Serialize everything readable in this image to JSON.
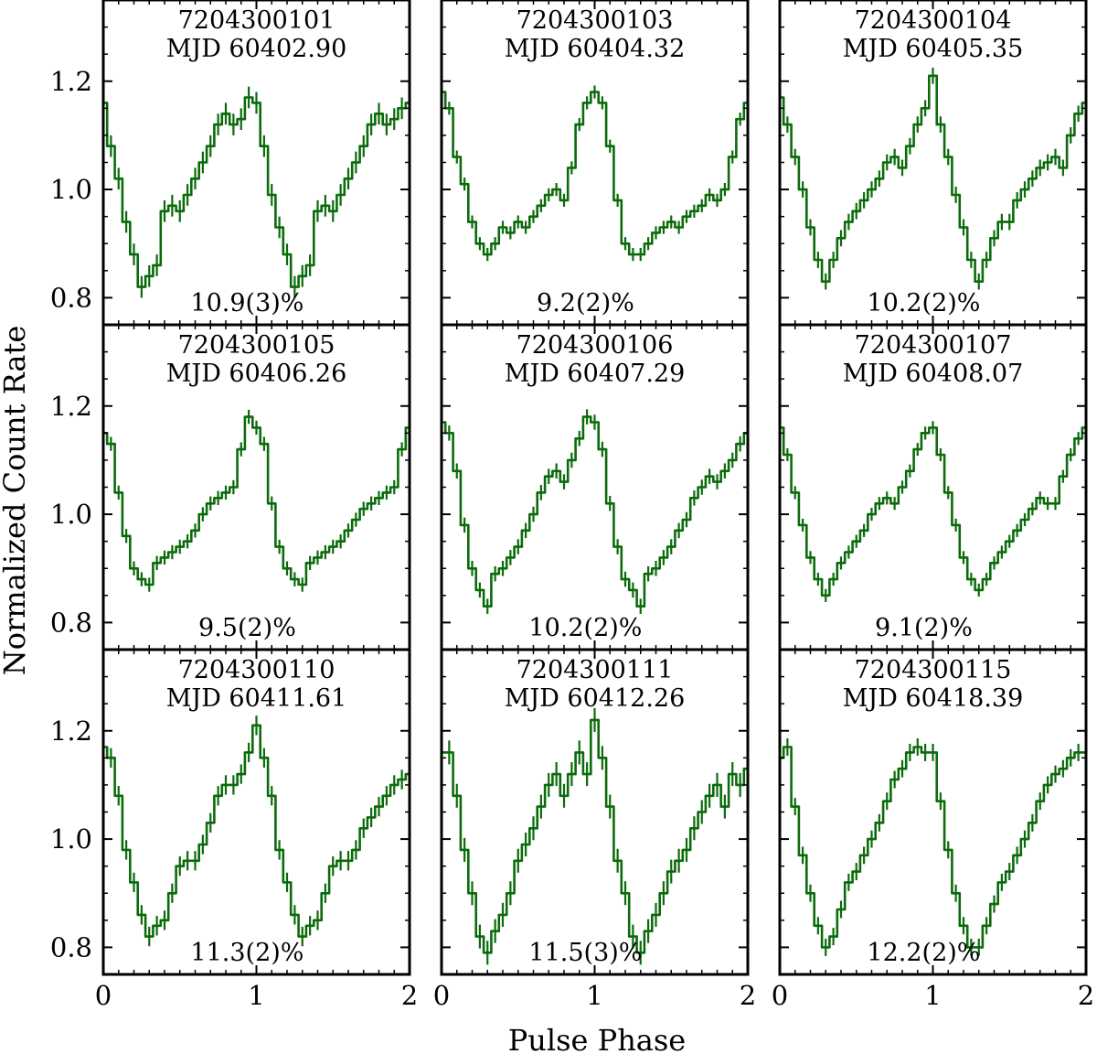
{
  "chart_data": {
    "type": "line",
    "xlabel": "Pulse Phase",
    "ylabel": "Normalized Count Rate",
    "xlim": [
      0,
      2
    ],
    "ylim": [
      0.75,
      1.35
    ],
    "xticks": [
      0,
      1,
      2
    ],
    "xtick_labels": [
      "0",
      "1",
      "2"
    ],
    "yticks": [
      0.8,
      1.0,
      1.2
    ],
    "ytick_labels": [
      "0.8",
      "1.0",
      "1.2"
    ],
    "line_color": "#0b6b0b",
    "grid": false,
    "layout": "3x3 grid, shared axes",
    "panels": [
      {
        "obsid": "7204300101",
        "mjd": "MJD 60402.90",
        "pulsed_fraction": "10.9(3)%",
        "x": [
          0.0,
          0.05,
          0.1,
          0.15,
          0.2,
          0.25,
          0.3,
          0.35,
          0.4,
          0.45,
          0.5,
          0.55,
          0.6,
          0.65,
          0.7,
          0.75,
          0.8,
          0.85,
          0.9,
          0.95,
          1.0,
          1.05,
          1.1,
          1.15,
          1.2,
          1.25,
          1.3,
          1.35,
          1.4,
          1.45,
          1.5,
          1.55,
          1.6,
          1.65,
          1.7,
          1.75,
          1.8,
          1.85,
          1.9,
          1.95,
          2.0
        ],
        "y": [
          1.16,
          1.08,
          1.02,
          0.94,
          0.88,
          0.82,
          0.84,
          0.86,
          0.96,
          0.97,
          0.96,
          0.99,
          1.02,
          1.05,
          1.08,
          1.12,
          1.14,
          1.12,
          1.13,
          1.17,
          1.16,
          1.08,
          0.99,
          0.93,
          0.88,
          0.82,
          0.84,
          0.86,
          0.96,
          0.97,
          0.96,
          0.99,
          1.02,
          1.05,
          1.08,
          1.12,
          1.14,
          1.12,
          1.13,
          1.15,
          1.16
        ],
        "yerr": 0.02
      },
      {
        "obsid": "7204300103",
        "mjd": "MJD 60404.32",
        "pulsed_fraction": "9.2(2)%",
        "x": [
          0.0,
          0.05,
          0.1,
          0.15,
          0.2,
          0.25,
          0.3,
          0.35,
          0.4,
          0.45,
          0.5,
          0.55,
          0.6,
          0.65,
          0.7,
          0.75,
          0.8,
          0.85,
          0.9,
          0.95,
          1.0,
          1.05,
          1.1,
          1.15,
          1.2,
          1.25,
          1.3,
          1.35,
          1.4,
          1.45,
          1.5,
          1.55,
          1.6,
          1.65,
          1.7,
          1.75,
          1.8,
          1.85,
          1.9,
          1.95,
          2.0
        ],
        "y": [
          1.18,
          1.15,
          1.06,
          1.01,
          0.94,
          0.9,
          0.88,
          0.9,
          0.93,
          0.92,
          0.94,
          0.93,
          0.95,
          0.97,
          0.99,
          1.0,
          0.98,
          1.04,
          1.12,
          1.16,
          1.18,
          1.16,
          1.08,
          0.98,
          0.9,
          0.88,
          0.88,
          0.9,
          0.92,
          0.93,
          0.94,
          0.93,
          0.95,
          0.96,
          0.97,
          0.99,
          0.98,
          1.0,
          1.06,
          1.13,
          1.16
        ],
        "yerr": 0.012
      },
      {
        "obsid": "7204300104",
        "mjd": "MJD 60405.35",
        "pulsed_fraction": "10.2(2)%",
        "x": [
          0.0,
          0.05,
          0.1,
          0.15,
          0.2,
          0.25,
          0.3,
          0.35,
          0.4,
          0.45,
          0.5,
          0.55,
          0.6,
          0.65,
          0.7,
          0.75,
          0.8,
          0.85,
          0.9,
          0.95,
          1.0,
          1.05,
          1.1,
          1.15,
          1.2,
          1.25,
          1.3,
          1.35,
          1.4,
          1.45,
          1.5,
          1.55,
          1.6,
          1.65,
          1.7,
          1.75,
          1.8,
          1.85,
          1.9,
          1.95,
          2.0
        ],
        "y": [
          1.17,
          1.12,
          1.06,
          1.0,
          0.93,
          0.87,
          0.83,
          0.87,
          0.91,
          0.94,
          0.96,
          0.98,
          1.0,
          1.02,
          1.05,
          1.06,
          1.04,
          1.08,
          1.12,
          1.15,
          1.21,
          1.12,
          1.06,
          0.99,
          0.93,
          0.87,
          0.83,
          0.87,
          0.91,
          0.94,
          0.94,
          0.98,
          1.0,
          1.02,
          1.04,
          1.05,
          1.06,
          1.04,
          1.1,
          1.14,
          1.16
        ],
        "yerr": 0.015
      },
      {
        "obsid": "7204300105",
        "mjd": "MJD 60406.26",
        "pulsed_fraction": "9.5(2)%",
        "x": [
          0.0,
          0.05,
          0.1,
          0.15,
          0.2,
          0.25,
          0.3,
          0.35,
          0.4,
          0.45,
          0.5,
          0.55,
          0.6,
          0.65,
          0.7,
          0.75,
          0.8,
          0.85,
          0.9,
          0.95,
          1.0,
          1.05,
          1.1,
          1.15,
          1.2,
          1.25,
          1.3,
          1.35,
          1.4,
          1.45,
          1.5,
          1.55,
          1.6,
          1.65,
          1.7,
          1.75,
          1.8,
          1.85,
          1.9,
          1.95,
          2.0
        ],
        "y": [
          1.15,
          1.13,
          1.04,
          0.96,
          0.9,
          0.88,
          0.87,
          0.91,
          0.92,
          0.93,
          0.94,
          0.95,
          0.97,
          1.0,
          1.02,
          1.03,
          1.04,
          1.05,
          1.12,
          1.18,
          1.16,
          1.13,
          1.02,
          0.94,
          0.9,
          0.88,
          0.87,
          0.91,
          0.92,
          0.93,
          0.94,
          0.95,
          0.97,
          0.99,
          1.01,
          1.02,
          1.03,
          1.04,
          1.05,
          1.12,
          1.16
        ],
        "yerr": 0.013
      },
      {
        "obsid": "7204300106",
        "mjd": "MJD 60407.29",
        "pulsed_fraction": "10.2(2)%",
        "x": [
          0.0,
          0.05,
          0.1,
          0.15,
          0.2,
          0.25,
          0.3,
          0.35,
          0.4,
          0.45,
          0.5,
          0.55,
          0.6,
          0.65,
          0.7,
          0.75,
          0.8,
          0.85,
          0.9,
          0.95,
          1.0,
          1.05,
          1.1,
          1.15,
          1.2,
          1.25,
          1.3,
          1.35,
          1.4,
          1.45,
          1.5,
          1.55,
          1.6,
          1.65,
          1.7,
          1.75,
          1.8,
          1.85,
          1.9,
          1.95,
          2.0
        ],
        "y": [
          1.17,
          1.15,
          1.08,
          0.98,
          0.9,
          0.86,
          0.83,
          0.89,
          0.9,
          0.92,
          0.94,
          0.97,
          1.0,
          1.04,
          1.07,
          1.08,
          1.06,
          1.1,
          1.14,
          1.18,
          1.17,
          1.12,
          1.02,
          0.94,
          0.88,
          0.86,
          0.83,
          0.89,
          0.9,
          0.92,
          0.94,
          0.97,
          0.99,
          1.03,
          1.05,
          1.07,
          1.06,
          1.08,
          1.1,
          1.13,
          1.15
        ],
        "yerr": 0.014
      },
      {
        "obsid": "7204300107",
        "mjd": "MJD 60408.07",
        "pulsed_fraction": "9.1(2)%",
        "x": [
          0.0,
          0.05,
          0.1,
          0.15,
          0.2,
          0.25,
          0.3,
          0.35,
          0.4,
          0.45,
          0.5,
          0.55,
          0.6,
          0.65,
          0.7,
          0.75,
          0.8,
          0.85,
          0.9,
          0.95,
          1.0,
          1.05,
          1.1,
          1.15,
          1.2,
          1.25,
          1.3,
          1.35,
          1.4,
          1.45,
          1.5,
          1.55,
          1.6,
          1.65,
          1.7,
          1.75,
          1.8,
          1.85,
          1.9,
          1.95,
          2.0
        ],
        "y": [
          1.16,
          1.11,
          1.04,
          0.98,
          0.92,
          0.88,
          0.85,
          0.88,
          0.91,
          0.93,
          0.95,
          0.97,
          1.0,
          1.02,
          1.03,
          1.02,
          1.05,
          1.08,
          1.12,
          1.15,
          1.16,
          1.11,
          1.04,
          0.98,
          0.92,
          0.88,
          0.86,
          0.88,
          0.91,
          0.93,
          0.95,
          0.97,
          0.99,
          1.01,
          1.03,
          1.02,
          1.02,
          1.07,
          1.11,
          1.14,
          1.16
        ],
        "yerr": 0.012
      },
      {
        "obsid": "7204300110",
        "mjd": "MJD 60411.61",
        "pulsed_fraction": "11.3(2)%",
        "x": [
          0.0,
          0.05,
          0.1,
          0.15,
          0.2,
          0.25,
          0.3,
          0.35,
          0.4,
          0.45,
          0.5,
          0.55,
          0.6,
          0.65,
          0.7,
          0.75,
          0.8,
          0.85,
          0.9,
          0.95,
          1.0,
          1.05,
          1.1,
          1.15,
          1.2,
          1.25,
          1.3,
          1.35,
          1.4,
          1.45,
          1.5,
          1.55,
          1.6,
          1.65,
          1.7,
          1.75,
          1.8,
          1.85,
          1.9,
          1.95,
          2.0
        ],
        "y": [
          1.17,
          1.15,
          1.08,
          0.98,
          0.92,
          0.86,
          0.82,
          0.84,
          0.85,
          0.9,
          0.95,
          0.96,
          0.96,
          0.99,
          1.03,
          1.08,
          1.1,
          1.1,
          1.12,
          1.16,
          1.21,
          1.15,
          1.08,
          0.98,
          0.92,
          0.86,
          0.82,
          0.84,
          0.85,
          0.9,
          0.95,
          0.96,
          0.96,
          0.98,
          1.02,
          1.04,
          1.06,
          1.08,
          1.1,
          1.11,
          1.12
        ],
        "yerr": 0.018
      },
      {
        "obsid": "7204300111",
        "mjd": "MJD 60412.26",
        "pulsed_fraction": "11.5(3)%",
        "x": [
          0.0,
          0.05,
          0.1,
          0.15,
          0.2,
          0.25,
          0.3,
          0.35,
          0.4,
          0.45,
          0.5,
          0.55,
          0.6,
          0.65,
          0.7,
          0.75,
          0.8,
          0.85,
          0.9,
          0.95,
          1.0,
          1.05,
          1.1,
          1.15,
          1.2,
          1.25,
          1.3,
          1.35,
          1.4,
          1.45,
          1.5,
          1.55,
          1.6,
          1.65,
          1.7,
          1.75,
          1.8,
          1.85,
          1.9,
          1.95,
          2.0
        ],
        "y": [
          1.16,
          1.16,
          1.08,
          0.98,
          0.9,
          0.82,
          0.79,
          0.83,
          0.86,
          0.9,
          0.96,
          0.99,
          1.02,
          1.06,
          1.1,
          1.12,
          1.08,
          1.12,
          1.16,
          1.12,
          1.22,
          1.15,
          1.06,
          0.96,
          0.9,
          0.82,
          0.79,
          0.83,
          0.86,
          0.9,
          0.94,
          0.96,
          0.98,
          1.02,
          1.05,
          1.08,
          1.1,
          1.06,
          1.12,
          1.1,
          1.13
        ],
        "yerr": 0.022
      },
      {
        "obsid": "7204300115",
        "mjd": "MJD 60418.39",
        "pulsed_fraction": "12.2(2)%",
        "x": [
          0.0,
          0.05,
          0.1,
          0.15,
          0.2,
          0.25,
          0.3,
          0.35,
          0.4,
          0.45,
          0.5,
          0.55,
          0.6,
          0.65,
          0.7,
          0.75,
          0.8,
          0.85,
          0.9,
          0.95,
          1.0,
          1.05,
          1.1,
          1.15,
          1.2,
          1.25,
          1.3,
          1.35,
          1.4,
          1.45,
          1.5,
          1.55,
          1.6,
          1.65,
          1.7,
          1.75,
          1.8,
          1.85,
          1.9,
          1.95,
          2.0
        ],
        "y": [
          1.15,
          1.17,
          1.06,
          0.97,
          0.9,
          0.84,
          0.8,
          0.82,
          0.87,
          0.92,
          0.94,
          0.97,
          1.0,
          1.03,
          1.07,
          1.11,
          1.13,
          1.16,
          1.17,
          1.16,
          1.16,
          1.07,
          0.98,
          0.9,
          0.84,
          0.8,
          0.8,
          0.84,
          0.88,
          0.92,
          0.94,
          0.97,
          1.0,
          1.03,
          1.07,
          1.1,
          1.12,
          1.13,
          1.15,
          1.16,
          1.16
        ],
        "yerr": 0.016
      }
    ]
  }
}
